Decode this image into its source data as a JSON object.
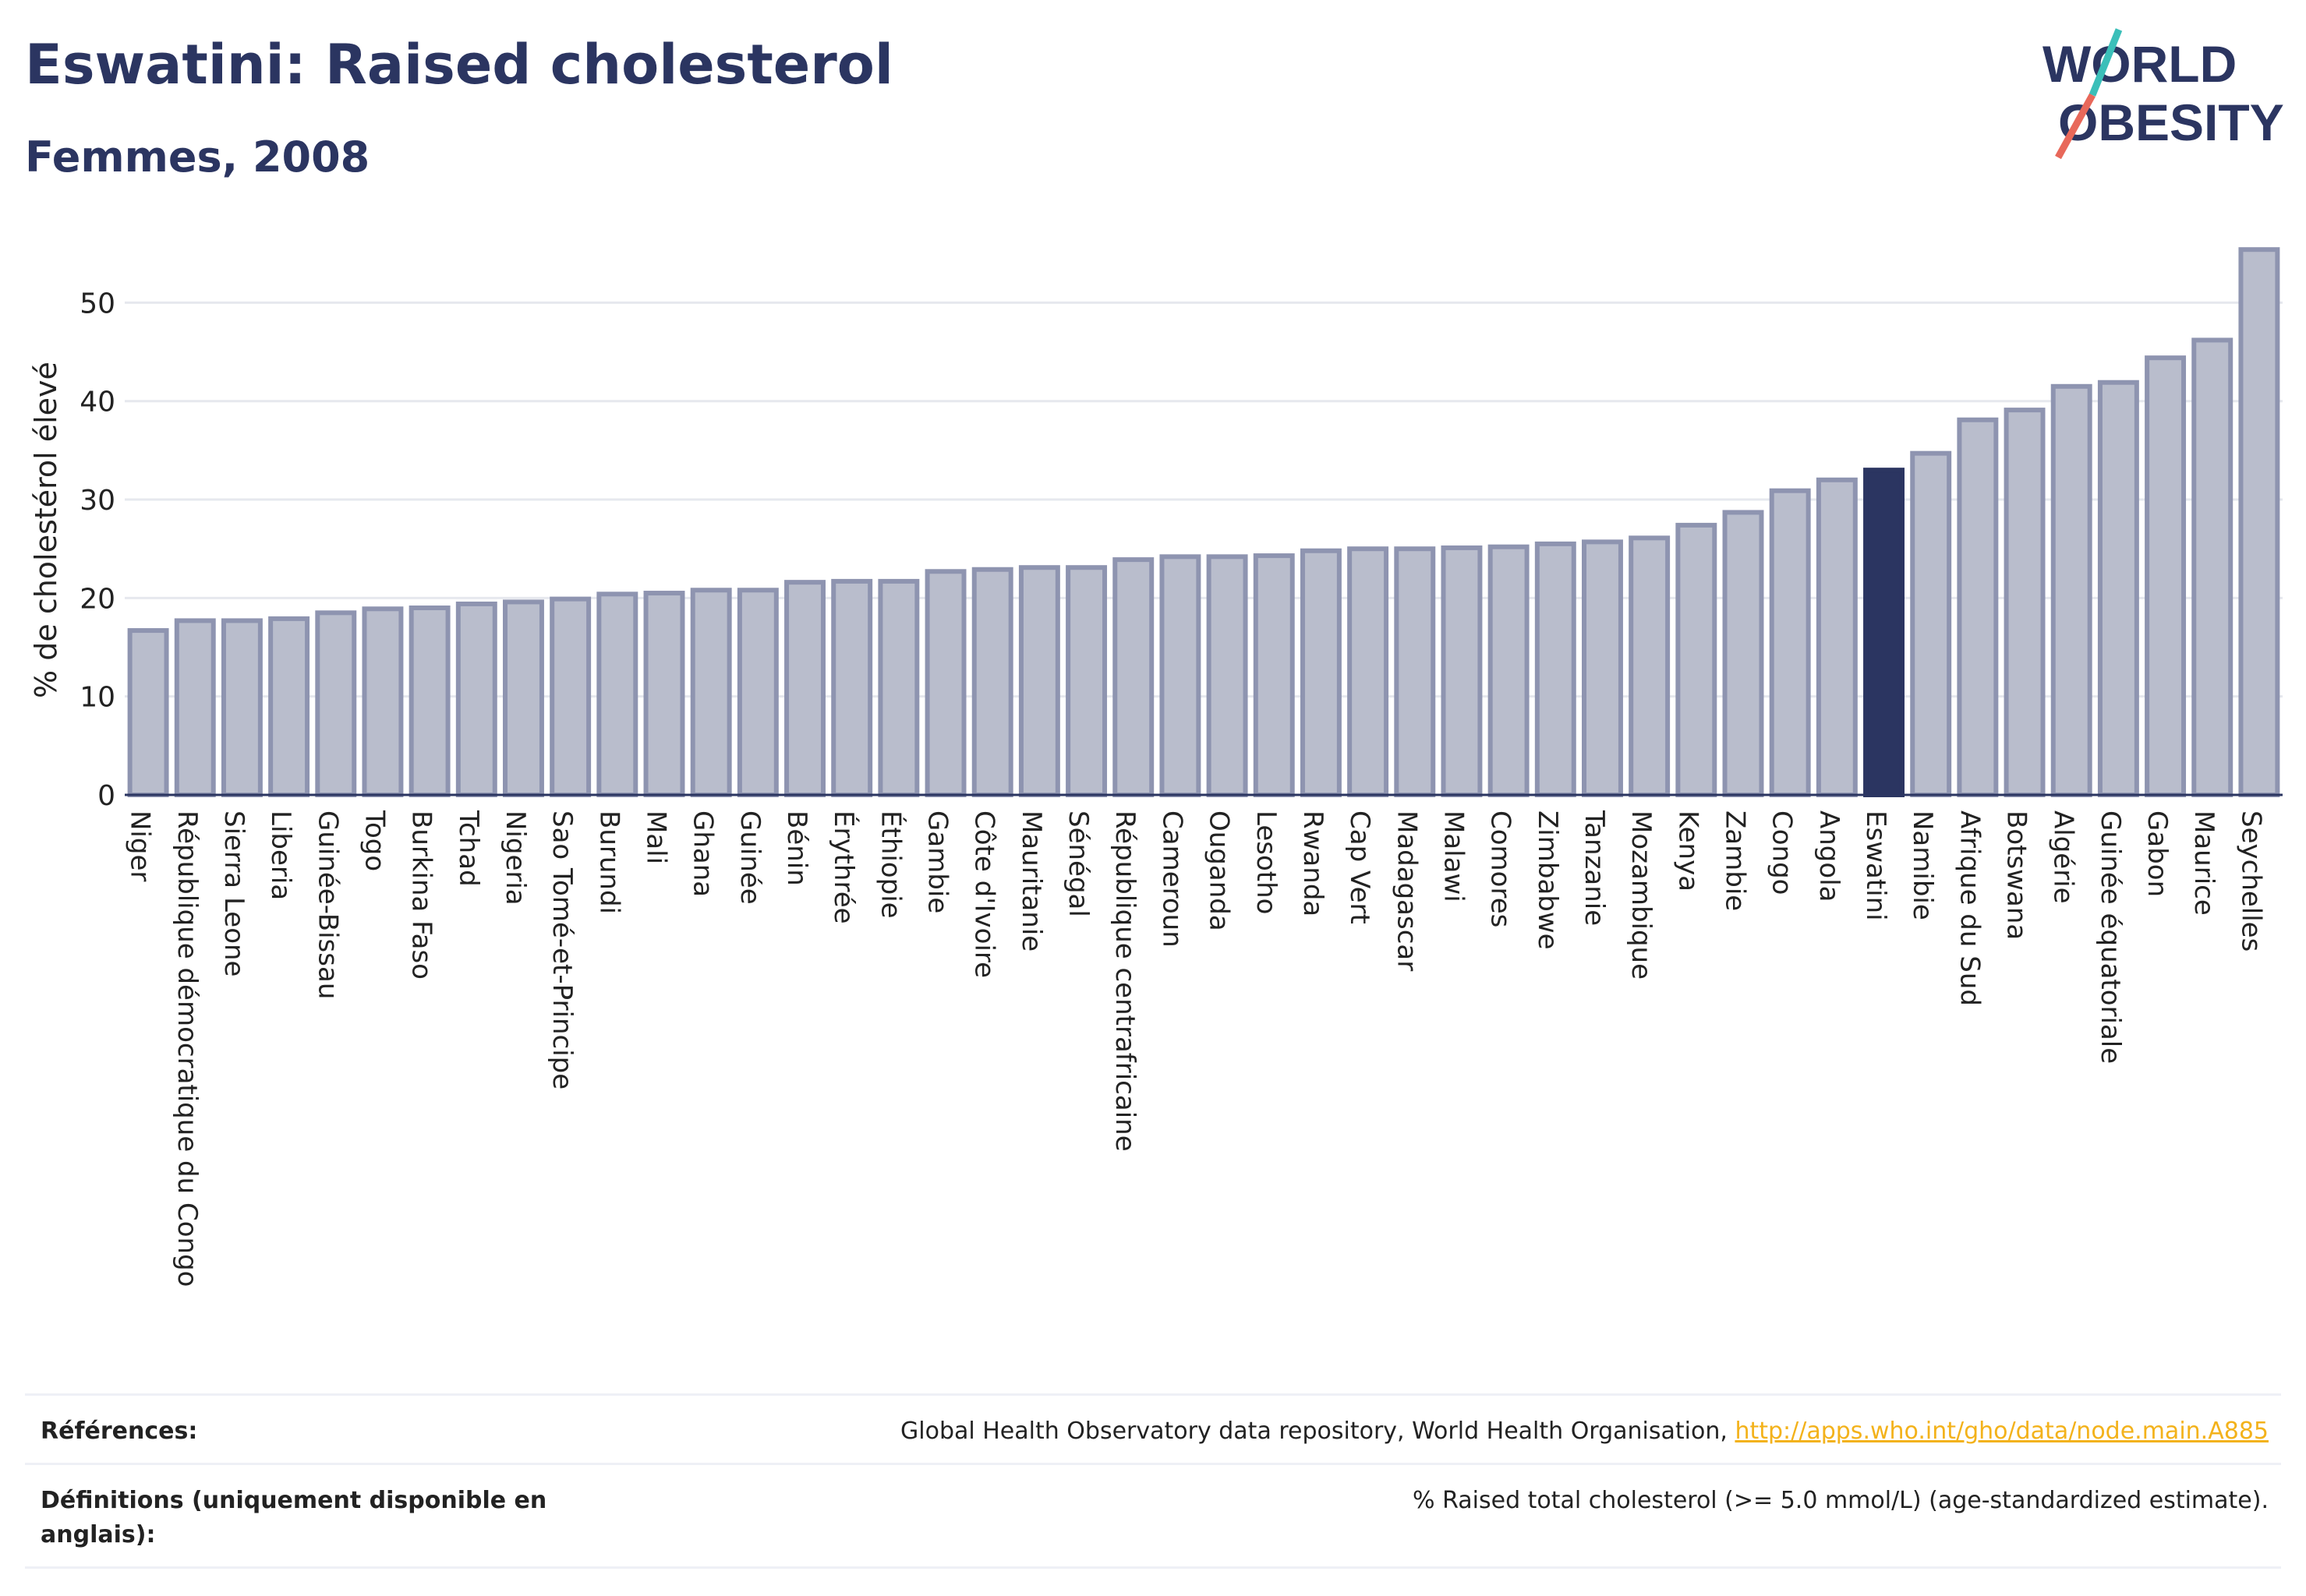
{
  "header": {
    "title": "Eswatini: Raised cholesterol",
    "subtitle": "Femmes, 2008"
  },
  "logo": {
    "line1": "WORLD",
    "line2": "OBESITY",
    "colors": {
      "text": "#2b3561",
      "slash_red": "#e8685a",
      "slash_teal": "#3bbfb9"
    }
  },
  "chart_data": {
    "type": "bar",
    "ylabel": "% de cholestérol élevé",
    "ylim": [
      0,
      57
    ],
    "yticks": [
      0,
      10,
      20,
      30,
      40,
      50
    ],
    "highlight": "Eswatini",
    "colors": {
      "bar": "#b9bdcc",
      "bar_edge": "#8e94b0",
      "highlight": "#2b3561",
      "grid": "#e6e8ee"
    },
    "categories": [
      "Niger",
      "République démocratique du Congo",
      "Sierra Leone",
      "Liberia",
      "Guinée-Bissau",
      "Togo",
      "Burkina Faso",
      "Tchad",
      "Nigeria",
      "Sao Tomé-et-Principe",
      "Burundi",
      "Mali",
      "Ghana",
      "Guinée",
      "Bénin",
      "Érythrée",
      "Éthiopie",
      "Gambie",
      "Côte d'Ivoire",
      "Mauritanie",
      "Sénégal",
      "République centrafricaine",
      "Cameroun",
      "Ouganda",
      "Lesotho",
      "Rwanda",
      "Cap Vert",
      "Madagascar",
      "Malawi",
      "Comores",
      "Zimbabwe",
      "Tanzanie",
      "Mozambique",
      "Kenya",
      "Zambie",
      "Congo",
      "Angola",
      "Eswatini",
      "Namibie",
      "Afrique du Sud",
      "Botswana",
      "Algérie",
      "Guinée équatoriale",
      "Gabon",
      "Maurice",
      "Seychelles"
    ],
    "values": [
      16.7,
      17.7,
      17.7,
      17.9,
      18.5,
      18.9,
      19.0,
      19.4,
      19.6,
      19.9,
      20.4,
      20.5,
      20.8,
      20.8,
      21.6,
      21.7,
      21.7,
      22.7,
      22.9,
      23.1,
      23.1,
      23.9,
      24.2,
      24.2,
      24.3,
      24.8,
      25.0,
      25.0,
      25.1,
      25.2,
      25.5,
      25.7,
      26.1,
      27.4,
      28.7,
      30.9,
      32.0,
      33.0,
      34.7,
      38.1,
      39.1,
      41.5,
      41.9,
      44.4,
      46.2,
      55.4
    ]
  },
  "references": {
    "label": "Références:",
    "source_text": "Global Health Observatory data repository, World Health Organisation, ",
    "source_link": "http://apps.who.int/gho/data/node.main.A885"
  },
  "definitions": {
    "label": "Définitions (uniquement disponible en anglais):",
    "text": "% Raised total cholesterol (>= 5.0 mmol/L) (age-standardized estimate)."
  }
}
